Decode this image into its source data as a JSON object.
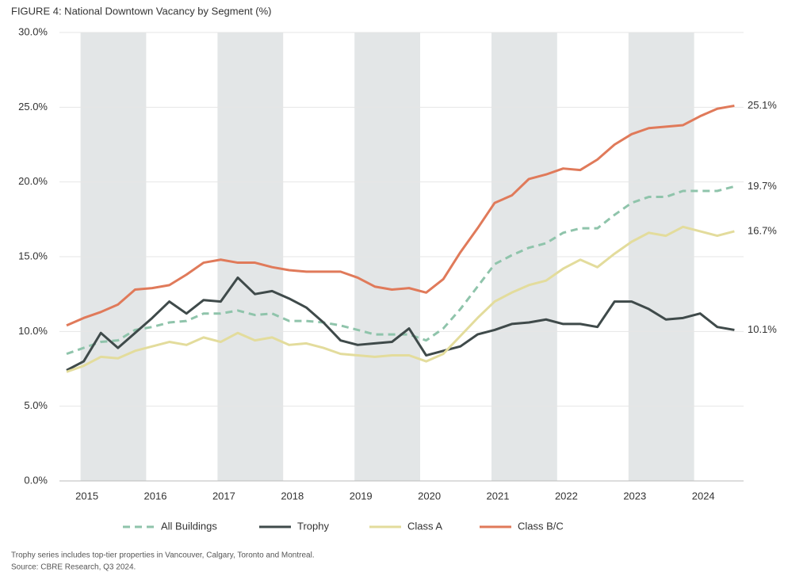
{
  "chart_data": {
    "type": "line",
    "title": "FIGURE 4: National Downtown Vacancy by Segment (%)",
    "categories": [
      null,
      "2015",
      null,
      null,
      null,
      "2016",
      null,
      null,
      null,
      "2017",
      null,
      null,
      null,
      "2018",
      null,
      null,
      null,
      "2019",
      null,
      null,
      null,
      "2020",
      null,
      null,
      null,
      "2021",
      null,
      null,
      null,
      "2022",
      null,
      null,
      null,
      "2023",
      null,
      null,
      null,
      "2024",
      null,
      null
    ],
    "series": [
      {
        "name": "All Buildings",
        "color": "#8fc4ab",
        "dashed": true,
        "values": [
          8.5,
          8.9,
          9.3,
          9.4,
          10.1,
          10.3,
          10.6,
          10.7,
          11.2,
          11.2,
          11.4,
          11.1,
          11.2,
          10.7,
          10.7,
          10.6,
          10.4,
          10.1,
          9.8,
          9.8,
          9.8,
          9.4,
          10.2,
          11.5,
          13.0,
          14.5,
          15.1,
          15.6,
          15.9,
          16.6,
          16.9,
          16.9,
          17.8,
          18.6,
          19.0,
          19.0,
          19.4,
          19.4,
          19.4,
          19.7
        ],
        "value_labels": [
          null,
          null,
          null,
          null,
          null,
          null,
          null,
          null,
          null,
          null,
          null,
          null,
          null,
          null,
          null,
          null,
          null,
          null,
          null,
          null,
          null,
          null,
          null,
          null,
          null,
          null,
          null,
          null,
          null,
          null,
          null,
          null,
          null,
          null,
          null,
          null,
          null,
          null,
          null,
          "19.7%"
        ]
      },
      {
        "name": "Trophy",
        "color": "#3f4a4a",
        "dashed": false,
        "values": [
          7.4,
          8.0,
          9.9,
          8.9,
          9.9,
          10.9,
          12.0,
          11.2,
          12.1,
          12.0,
          13.6,
          12.5,
          12.7,
          12.2,
          11.6,
          10.6,
          9.4,
          9.1,
          9.2,
          9.3,
          10.2,
          8.4,
          8.7,
          9.0,
          9.8,
          10.1,
          10.5,
          10.6,
          10.8,
          10.5,
          10.5,
          10.3,
          12.0,
          12.0,
          11.5,
          10.8,
          10.9,
          11.2,
          10.3,
          10.1
        ],
        "value_labels": [
          null,
          null,
          null,
          null,
          null,
          null,
          null,
          null,
          null,
          null,
          null,
          null,
          null,
          null,
          null,
          null,
          null,
          null,
          null,
          null,
          null,
          null,
          null,
          null,
          null,
          null,
          null,
          null,
          null,
          null,
          null,
          null,
          null,
          null,
          null,
          null,
          null,
          null,
          null,
          "10.1%"
        ]
      },
      {
        "name": "Class A",
        "color": "#e3dc9c",
        "dashed": false,
        "values": [
          7.3,
          7.7,
          8.3,
          8.2,
          8.7,
          9.0,
          9.3,
          9.1,
          9.6,
          9.3,
          9.9,
          9.4,
          9.6,
          9.1,
          9.2,
          8.9,
          8.5,
          8.4,
          8.3,
          8.4,
          8.4,
          8.0,
          8.5,
          9.7,
          10.9,
          12.0,
          12.6,
          13.1,
          13.4,
          14.2,
          14.8,
          14.3,
          15.2,
          16.0,
          16.6,
          16.4,
          17.0,
          16.7,
          16.4,
          16.7
        ],
        "value_labels": [
          null,
          null,
          null,
          null,
          null,
          null,
          null,
          null,
          null,
          null,
          null,
          null,
          null,
          null,
          null,
          null,
          null,
          null,
          null,
          null,
          null,
          null,
          null,
          null,
          null,
          null,
          null,
          null,
          null,
          null,
          null,
          null,
          null,
          null,
          null,
          null,
          null,
          null,
          null,
          "16.7%"
        ]
      },
      {
        "name": "Class B/C",
        "color": "#e07a5a",
        "dashed": false,
        "values": [
          10.4,
          10.9,
          11.3,
          11.8,
          12.8,
          12.9,
          13.1,
          13.8,
          14.6,
          14.8,
          14.6,
          14.6,
          14.3,
          14.1,
          14.0,
          14.0,
          14.0,
          13.6,
          13.0,
          12.8,
          12.9,
          12.6,
          13.5,
          15.3,
          16.9,
          18.6,
          19.1,
          20.2,
          20.5,
          20.9,
          20.8,
          21.5,
          22.5,
          23.2,
          23.6,
          23.7,
          23.8,
          24.4,
          24.9,
          25.1
        ],
        "value_labels": [
          null,
          null,
          null,
          null,
          null,
          null,
          null,
          null,
          null,
          null,
          null,
          null,
          null,
          null,
          null,
          null,
          null,
          null,
          null,
          null,
          null,
          null,
          null,
          null,
          null,
          null,
          null,
          null,
          null,
          null,
          null,
          null,
          null,
          null,
          null,
          null,
          null,
          null,
          null,
          "25.1%"
        ]
      }
    ],
    "ylim": [
      0,
      30
    ],
    "yticks": [
      {
        "value": 0,
        "label": "0.0%"
      },
      {
        "value": 5,
        "label": "5.0%"
      },
      {
        "value": 10,
        "label": "10.0%"
      },
      {
        "value": 15,
        "label": "15.0%"
      },
      {
        "value": 20,
        "label": "20.0%"
      },
      {
        "value": 25,
        "label": "25.0%"
      },
      {
        "value": 30,
        "label": "30.0%"
      }
    ],
    "grid": true,
    "legend": "bottom",
    "notes": [
      "Trophy series includes top-tier properties in Vancouver, Calgary, Toronto and Montreal.",
      "Source: CBRE Research, Q3 2024."
    ]
  }
}
